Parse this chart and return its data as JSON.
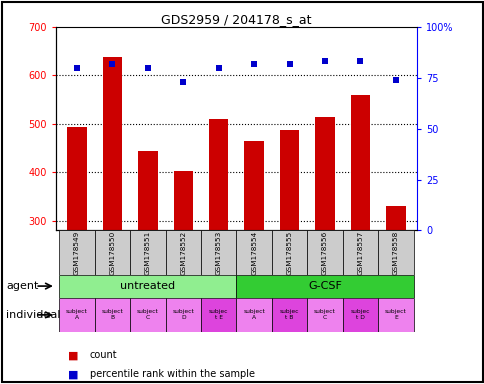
{
  "title": "GDS2959 / 204178_s_at",
  "samples": [
    "GSM178549",
    "GSM178550",
    "GSM178551",
    "GSM178552",
    "GSM178553",
    "GSM178554",
    "GSM178555",
    "GSM178556",
    "GSM178557",
    "GSM178558"
  ],
  "counts": [
    493,
    638,
    444,
    402,
    510,
    465,
    487,
    515,
    560,
    330
  ],
  "percentile_ranks": [
    80,
    82,
    80,
    73,
    80,
    82,
    82,
    83,
    83,
    74
  ],
  "ylim_left": [
    280,
    700
  ],
  "yticks_left": [
    300,
    400,
    500,
    600,
    700
  ],
  "ylim_right": [
    0,
    100
  ],
  "yticks_right": [
    0,
    25,
    50,
    75,
    100
  ],
  "bar_color": "#cc0000",
  "dot_color": "#0000cc",
  "agent_groups": [
    {
      "label": "untreated",
      "start": 0,
      "end": 5,
      "color": "#90ee90"
    },
    {
      "label": "G-CSF",
      "start": 5,
      "end": 10,
      "color": "#33cc33"
    }
  ],
  "individual_labels": [
    "subject\nA",
    "subject\nB",
    "subject\nC",
    "subject\nD",
    "subjec\nt E",
    "subject\nA",
    "subjec\nt B",
    "subject\nC",
    "subjec\nt D",
    "subject\nE"
  ],
  "individual_highlight": [
    false,
    false,
    false,
    false,
    true,
    false,
    true,
    false,
    true,
    false
  ],
  "individual_color_normal": "#ee82ee",
  "individual_color_highlight": "#dd44dd",
  "xlabel_agent": "agent",
  "xlabel_individual": "individual",
  "legend_count": "count",
  "legend_percentile": "percentile rank within the sample",
  "bar_bottom": 280,
  "gsm_bg": "#cccccc",
  "frame_color": "#000000"
}
